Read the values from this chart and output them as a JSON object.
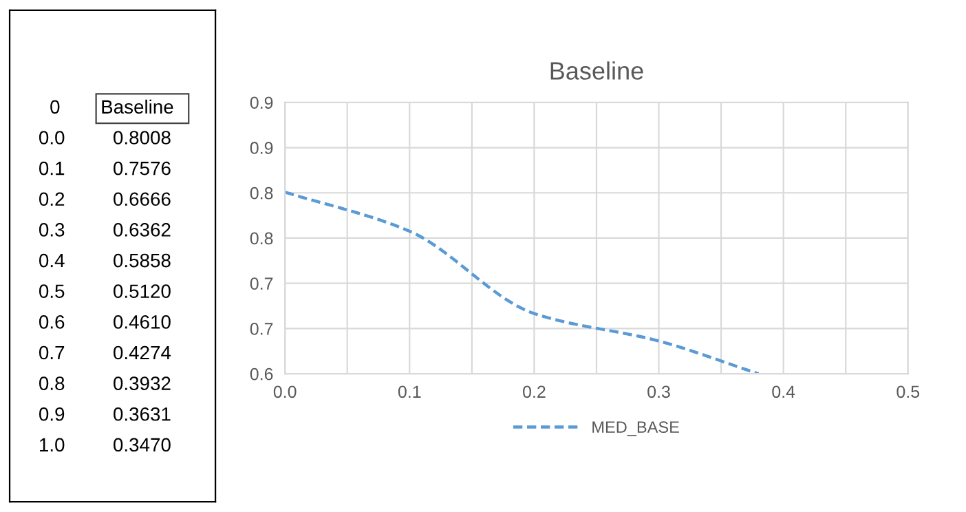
{
  "chart_data": [
    {
      "type": "other",
      "annotations": [
        "0",
        "Baseline",
        "0.0",
        "0.8008",
        "0.1",
        "0.7576",
        "0.2",
        "0.6666",
        "0.3",
        "0.6362",
        "0.4",
        "0.5858",
        "0.5",
        "0.5120",
        "0.6",
        "0.4610",
        "0.7",
        "0.4274",
        "0.8",
        "0.3932",
        "0.9",
        "0.3631",
        "1.0",
        "0.3470"
      ]
    },
    {
      "type": "line",
      "title": "Baseline",
      "x": [
        0,
        0.1,
        0.2,
        0.3,
        0.38
      ],
      "series": [
        {
          "name": "MED_BASE",
          "color": "#5b9bd5",
          "values": [
            0.8008,
            0.7576,
            0.6666,
            0.6362,
            0.6
          ]
        }
      ],
      "xlim": [
        0,
        0.5
      ],
      "xticks": [
        {
          "value": 0,
          "label": "0.0"
        },
        {
          "value": 0.05,
          "label": null
        },
        {
          "value": 0.1,
          "label": "0.1"
        },
        {
          "value": 0.15,
          "label": null
        },
        {
          "value": 0.2,
          "label": "0.2"
        },
        {
          "value": 0.25,
          "label": null
        },
        {
          "value": 0.3,
          "label": "0.3"
        },
        {
          "value": 0.35,
          "label": null
        },
        {
          "value": 0.4,
          "label": "0.4"
        },
        {
          "value": 0.45,
          "label": null
        },
        {
          "value": 0.5,
          "label": "0.5"
        }
      ],
      "ylim": [
        0.6,
        0.9
      ],
      "yticks": [
        {
          "value": 0.6,
          "label": "0.6"
        },
        {
          "value": 0.65,
          "label": "0.7"
        },
        {
          "value": 0.7,
          "label": "0.7"
        },
        {
          "value": 0.75,
          "label": "0.8"
        },
        {
          "value": 0.8,
          "label": "0.8"
        },
        {
          "value": 0.85,
          "label": "0.9"
        },
        {
          "value": 0.9,
          "label": "0.9"
        }
      ],
      "grid": true,
      "legend": "bottom",
      "line_style": "dashed",
      "marker": "none"
    }
  ]
}
